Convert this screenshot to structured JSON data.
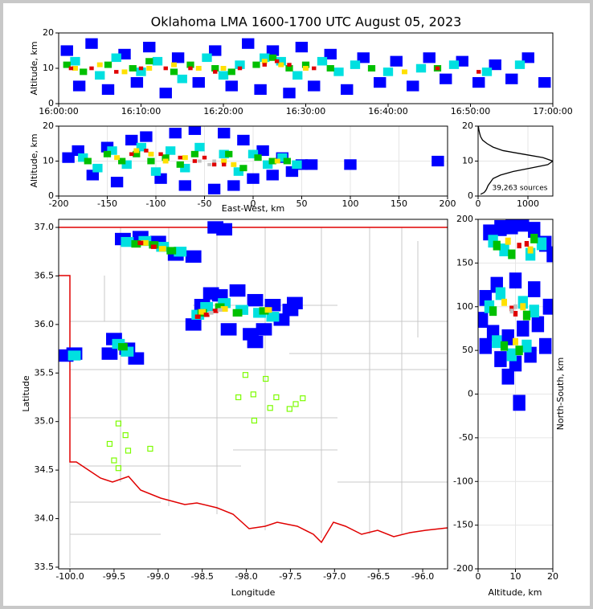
{
  "chart_data": [
    {
      "type": "scatter",
      "title": "Oklahoma LMA 1600-1700 UTC August 05, 2023",
      "ylabel": "Altitude, km",
      "xlim": [
        0,
        60
      ],
      "xticks": [
        {
          "value": 0,
          "label": "16:00:00"
        },
        {
          "value": 10,
          "label": "16:10:00"
        },
        {
          "value": 20,
          "label": "16:20:00"
        },
        {
          "value": 30,
          "label": "16:30:00"
        },
        {
          "value": 40,
          "label": "16:40:00"
        },
        {
          "value": 50,
          "label": "16:50:00"
        },
        {
          "value": 60,
          "label": "17:00:00"
        }
      ],
      "ylim": [
        0,
        20
      ],
      "yticks": [
        0,
        10,
        20
      ],
      "grid": false,
      "series": [
        {
          "color": "#0000ff",
          "x": [
            1,
            2.5,
            4,
            6,
            8,
            9.5,
            11,
            13,
            14.5,
            17,
            19,
            21,
            23,
            24.5,
            26,
            28,
            29.5,
            31,
            33,
            35,
            37,
            39,
            41,
            43,
            45,
            47,
            49,
            51,
            53,
            55,
            57,
            59
          ],
          "y": [
            15,
            5,
            17,
            4,
            14,
            6,
            16,
            3,
            13,
            6,
            15,
            5,
            17,
            4,
            15,
            3,
            16,
            5,
            14,
            4,
            13,
            6,
            12,
            5,
            13,
            7,
            12,
            6,
            11,
            7,
            13,
            6
          ]
        },
        {
          "color": "#00e0e0",
          "x": [
            2,
            5,
            7,
            10,
            12,
            15,
            18,
            20,
            22,
            25,
            27,
            29,
            32,
            34,
            36,
            40,
            44,
            48,
            52,
            56
          ],
          "y": [
            12,
            8,
            13,
            9,
            12,
            7,
            13,
            8,
            11,
            13,
            12,
            8,
            12,
            9,
            11,
            9,
            10,
            11,
            9,
            11
          ]
        },
        {
          "color": "#00c000",
          "x": [
            1,
            3,
            6,
            9,
            11,
            14,
            16,
            19,
            21,
            24,
            26,
            28,
            30,
            33,
            38,
            46
          ],
          "y": [
            11,
            9,
            11,
            10,
            12,
            9,
            11,
            10,
            9,
            11,
            13,
            10,
            11,
            10,
            10,
            10
          ]
        },
        {
          "color": "#ffe000",
          "x": [
            2,
            5,
            8,
            11,
            14,
            17,
            20,
            25,
            27,
            30,
            42
          ],
          "y": [
            10,
            11,
            9,
            10,
            11,
            10,
            10,
            12,
            11,
            10,
            9
          ]
        },
        {
          "color": "#e00000",
          "x": [
            1.5,
            4,
            7,
            10,
            13,
            16,
            19,
            22,
            25,
            26.5,
            28,
            31,
            46,
            51
          ],
          "y": [
            10,
            10,
            9,
            10,
            10,
            10,
            9,
            10,
            11,
            12,
            11,
            10,
            10,
            9
          ]
        }
      ]
    },
    {
      "type": "scatter",
      "xlabel": "East-West, km",
      "ylabel": "Altitude, km",
      "xlim": [
        -200,
        200
      ],
      "xticks": [
        -200,
        -150,
        -100,
        -50,
        0,
        50,
        100,
        150,
        200
      ],
      "ylim": [
        0,
        20
      ],
      "yticks": [
        0,
        10,
        20
      ],
      "grid": true,
      "series": [
        {
          "color": "#0000ff",
          "x": [
            -190,
            -180,
            -165,
            -150,
            -140,
            -125,
            -110,
            -95,
            -80,
            -70,
            -60,
            -40,
            -30,
            -20,
            -10,
            0,
            10,
            20,
            30,
            40,
            50,
            60,
            100,
            190
          ],
          "y": [
            11,
            13,
            6,
            14,
            4,
            16,
            17,
            5,
            18,
            3,
            19,
            2,
            18,
            3,
            16,
            5,
            13,
            6,
            11,
            7,
            9,
            9,
            9,
            10
          ]
        },
        {
          "color": "#00e0e0",
          "x": [
            -175,
            -160,
            -145,
            -130,
            -115,
            -100,
            -85,
            -70,
            -55,
            -30,
            -15,
            0,
            15,
            30,
            45
          ],
          "y": [
            11,
            8,
            13,
            9,
            14,
            7,
            13,
            8,
            14,
            12,
            7,
            12,
            9,
            11,
            9
          ]
        },
        {
          "color": "#00c000",
          "x": [
            -170,
            -150,
            -135,
            -120,
            -105,
            -90,
            -75,
            -60,
            -25,
            -10,
            5,
            20,
            35
          ],
          "y": [
            10,
            12,
            10,
            12,
            10,
            11,
            9,
            12,
            12,
            8,
            11,
            10,
            10
          ]
        },
        {
          "color": "#ffe000",
          "x": [
            -140,
            -120,
            -105,
            -90,
            -70,
            -30,
            -20,
            25
          ],
          "y": [
            11,
            13,
            12,
            10,
            11,
            10,
            9,
            10
          ]
        },
        {
          "color": "#e00000",
          "x": [
            -125,
            -110,
            -95,
            -75,
            -60,
            -50,
            -40,
            -30
          ],
          "y": [
            12,
            13,
            12,
            11,
            10,
            11,
            9,
            9
          ]
        },
        {
          "color": "#c0c0c0",
          "x": [
            -55,
            -45,
            -40
          ],
          "y": [
            10,
            9,
            10
          ]
        }
      ]
    },
    {
      "type": "line",
      "annotation": "39,263 sources",
      "xlim": [
        0,
        1500
      ],
      "xticks": [
        0,
        1000
      ],
      "ylim": [
        0,
        20
      ],
      "yticks": [
        0,
        10,
        20
      ],
      "grid": true,
      "series": [
        {
          "color": "#000000",
          "x": [
            50,
            120,
            150,
            170,
            200,
            250,
            300,
            450,
            700,
            1050,
            1400,
            1500,
            1300,
            900,
            500,
            300,
            180,
            90,
            50,
            30,
            15,
            5
          ],
          "y": [
            0.5,
            1,
            1.5,
            2,
            3,
            4,
            5,
            6,
            7,
            8,
            9,
            10,
            11,
            12,
            13,
            14,
            15,
            16,
            17,
            18,
            19,
            20
          ]
        }
      ]
    },
    {
      "type": "scatter",
      "xlabel": "Longitude",
      "ylabel": "Latitude",
      "xlim": [
        -100.128,
        -95.718
      ],
      "xticks": [
        {
          "value": -100,
          "label": "-100.0"
        },
        -99.5,
        {
          "value": -99,
          "label": "-99.0"
        },
        -98.5,
        {
          "value": -98,
          "label": "-98.0"
        },
        -97.5,
        {
          "value": -97,
          "label": "-97.0"
        },
        -96.5,
        {
          "value": -96,
          "label": "-96.0"
        }
      ],
      "ylim": [
        33.483,
        37.083
      ],
      "yticks": [
        33.5,
        {
          "value": 34,
          "label": "34.0"
        },
        34.5,
        {
          "value": 35,
          "label": "35.0"
        },
        35.5,
        {
          "value": 36,
          "label": "36.0"
        },
        36.5,
        {
          "value": 37,
          "label": "37.0"
        }
      ],
      "grid": false,
      "series": [
        {
          "color": "#0000ff",
          "x": [
            -99.4,
            -99.2,
            -99.0,
            -98.8,
            -98.6,
            -98.5,
            -98.3,
            -98.1,
            -97.9,
            -97.7,
            -97.6,
            -97.5,
            -98.6,
            -98.2,
            -97.95,
            -99.5,
            -99.35,
            -99.55,
            -99.25,
            -99.95,
            -100.05,
            -98.35,
            -98.25,
            -98.4,
            -97.8,
            -97.9,
            -97.45
          ],
          "y": [
            36.88,
            36.9,
            36.85,
            36.72,
            36.7,
            36.2,
            36.3,
            36.35,
            36.25,
            36.2,
            36.05,
            36.15,
            36.0,
            35.95,
            35.9,
            35.85,
            35.75,
            35.7,
            35.65,
            35.7,
            35.68,
            37.0,
            36.98,
            36.32,
            35.95,
            35.82,
            36.22
          ]
        },
        {
          "color": "#00e0e0",
          "x": [
            -99.35,
            -99.15,
            -98.95,
            -98.75,
            -98.55,
            -98.45,
            -98.25,
            -98.05,
            -97.85,
            -97.7,
            -99.45,
            -99.35,
            -99.95
          ],
          "y": [
            36.85,
            36.86,
            36.8,
            36.75,
            36.1,
            36.18,
            36.22,
            36.15,
            36.12,
            36.08,
            35.8,
            35.72,
            35.68
          ]
        },
        {
          "color": "#00c000",
          "x": [
            -99.25,
            -99.05,
            -98.85,
            -98.5,
            -98.3,
            -98.1,
            -97.8,
            -99.4
          ],
          "y": [
            36.83,
            36.82,
            36.76,
            36.12,
            36.18,
            36.12,
            36.14,
            35.77
          ]
        },
        {
          "color": "#ffe000",
          "x": [
            -99.15,
            -98.95,
            -98.5,
            -98.25,
            -97.75
          ],
          "y": [
            36.84,
            36.78,
            36.13,
            36.16,
            36.15
          ]
        },
        {
          "color": "#e00000",
          "x": [
            -99.2,
            -99.05,
            -98.45,
            -98.35,
            -98.55
          ],
          "y": [
            36.84,
            36.8,
            36.1,
            36.14,
            36.08
          ]
        },
        {
          "color": "#c0c0c0",
          "x": [
            -98.4,
            -98.3
          ],
          "y": [
            36.12,
            36.15
          ]
        },
        {
          "color": "#7cfc00",
          "marker": "square-open",
          "x": [
            -98.01,
            -97.78,
            -98.09,
            -97.92,
            -97.66,
            -97.73,
            -97.36,
            -97.44,
            -97.51,
            -97.91,
            -99.45,
            -99.37,
            -99.55,
            -99.34,
            -99.09,
            -99.5,
            -99.45
          ],
          "y": [
            35.48,
            35.44,
            35.25,
            35.28,
            35.25,
            35.14,
            35.24,
            35.18,
            35.13,
            35.01,
            34.98,
            34.86,
            34.77,
            34.7,
            34.72,
            34.6,
            34.52
          ]
        }
      ]
    },
    {
      "type": "scatter",
      "xlabel": "Altitude, km",
      "ylabel": "North-South, km",
      "xlim": [
        0,
        20
      ],
      "xticks": [
        0,
        10,
        20
      ],
      "ylim": [
        -200,
        200
      ],
      "yticks": [
        -200,
        -150,
        -100,
        -50,
        0,
        50,
        100,
        150,
        200
      ],
      "grid": true,
      "series": [
        {
          "color": "#0000ff",
          "x": [
            3,
            6,
            9,
            12,
            15,
            18,
            20,
            2,
            5,
            10,
            15,
            19,
            1,
            4,
            8,
            12,
            16,
            2,
            6,
            10,
            14,
            18,
            8,
            11
          ],
          "y": [
            185,
            190,
            192,
            195,
            188,
            172,
            160,
            110,
            125,
            130,
            120,
            100,
            85,
            70,
            65,
            75,
            80,
            55,
            40,
            35,
            45,
            55,
            20,
            -10
          ]
        },
        {
          "color": "#00e0e0",
          "x": [
            4,
            7,
            14,
            17,
            3,
            6,
            12,
            15,
            5,
            9,
            13
          ],
          "y": [
            175,
            165,
            160,
            172,
            100,
            115,
            105,
            95,
            60,
            45,
            55
          ]
        },
        {
          "color": "#00c000",
          "x": [
            5,
            9,
            15,
            4,
            13,
            7,
            11
          ],
          "y": [
            170,
            160,
            178,
            95,
            90,
            55,
            50
          ]
        },
        {
          "color": "#ffe000",
          "x": [
            8,
            14,
            7,
            12,
            10
          ],
          "y": [
            175,
            165,
            105,
            100,
            60
          ]
        },
        {
          "color": "#e00000",
          "x": [
            11,
            13,
            9,
            10
          ],
          "y": [
            170,
            172,
            98,
            92
          ]
        },
        {
          "color": "#c0c0c0",
          "x": [
            9,
            10
          ],
          "y": [
            95,
            100
          ]
        }
      ]
    }
  ]
}
